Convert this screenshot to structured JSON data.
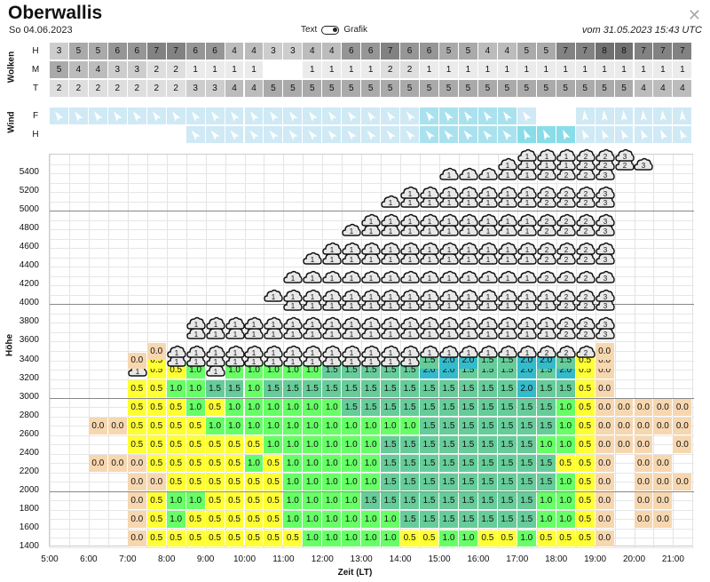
{
  "title": "Oberwallis",
  "date": "So 04.06.2023",
  "toggle": {
    "left_label": "Text",
    "right_label": "Grafik"
  },
  "updated": "vom 31.05.2023 15:43 UTC",
  "close_icon": "close-icon",
  "clouds": {
    "section_label": "Wolken",
    "rows": [
      {
        "label": "H",
        "values": [
          "3",
          "5",
          "5",
          "6",
          "6",
          "7",
          "7",
          "6",
          "6",
          "4",
          "4",
          "3",
          "3",
          "4",
          "4",
          "6",
          "6",
          "7",
          "6",
          "6",
          "5",
          "5",
          "4",
          "4",
          "5",
          "5",
          "7",
          "7",
          "8",
          "8",
          "7",
          "7",
          "7"
        ]
      },
      {
        "label": "M",
        "values": [
          "5",
          "4",
          "4",
          "3",
          "3",
          "2",
          "2",
          "1",
          "1",
          "1",
          "1",
          "",
          "",
          "1",
          "1",
          "1",
          "1",
          "2",
          "2",
          "1",
          "1",
          "1",
          "1",
          "1",
          "1",
          "1",
          "1",
          "1",
          "1",
          "1",
          "1",
          "1",
          "1"
        ]
      },
      {
        "label": "T",
        "values": [
          "2",
          "2",
          "2",
          "2",
          "2",
          "2",
          "2",
          "3",
          "3",
          "4",
          "4",
          "5",
          "5",
          "5",
          "5",
          "5",
          "5",
          "5",
          "5",
          "5",
          "5",
          "5",
          "5",
          "5",
          "5",
          "5",
          "5",
          "5",
          "5",
          "5",
          "4",
          "4",
          "4"
        ]
      }
    ]
  },
  "wind": {
    "section_label": "Wind",
    "rows": [
      {
        "label": "F"
      },
      {
        "label": "H"
      }
    ]
  },
  "chart_data": {
    "type": "heatmap",
    "xlabel": "Zeit (LT)",
    "ylabel": "Höhe",
    "x_ticks": [
      "5:00",
      "6:00",
      "7:00",
      "8:00",
      "9:00",
      "10:00",
      "11:00",
      "12:00",
      "13:00",
      "14:00",
      "15:00",
      "16:00",
      "17:00",
      "18:00",
      "19:00",
      "20:00",
      "21:00"
    ],
    "y_ticks": [
      "1400",
      "1600",
      "1800",
      "2000",
      "2200",
      "2400",
      "2600",
      "2800",
      "3000",
      "3200",
      "3400",
      "3600",
      "3800",
      "4000",
      "4200",
      "4400",
      "4600",
      "4800",
      "5000",
      "5200",
      "5400"
    ],
    "rows": [
      {
        "alt": 1400,
        "values": [
          "",
          "",
          "",
          "",
          "0.0",
          "0.5",
          "0.5",
          "0.5",
          "0.5",
          "0.5",
          "0.5",
          "0.5",
          "0.5",
          "1.0",
          "1.0",
          "1.0",
          "1.0",
          "1.0",
          "0.5",
          "0.5",
          "1.0",
          "1.0",
          "0.5",
          "0.5",
          "1.0",
          "0.5",
          "0.5",
          "0.5",
          "0.0",
          "",
          "",
          "",
          ""
        ]
      },
      {
        "alt": 1600,
        "values": [
          "",
          "",
          "",
          "",
          "0.0",
          "0.5",
          "1.0",
          "0.5",
          "0.5",
          "0.5",
          "0.5",
          "0.5",
          "1.0",
          "1.0",
          "1.0",
          "1.0",
          "1.0",
          "1.0",
          "1.5",
          "1.5",
          "1.5",
          "1.5",
          "1.5",
          "1.5",
          "1.5",
          "1.0",
          "1.0",
          "0.5",
          "0.0",
          "",
          "0.0",
          "0.0",
          ""
        ]
      },
      {
        "alt": 1800,
        "values": [
          "",
          "",
          "",
          "",
          "0.0",
          "0.5",
          "1.0",
          "1.0",
          "0.5",
          "0.5",
          "0.5",
          "0.5",
          "1.0",
          "1.0",
          "1.0",
          "1.0",
          "1.5",
          "1.5",
          "1.5",
          "1.5",
          "1.5",
          "1.5",
          "1.5",
          "1.5",
          "1.5",
          "1.0",
          "1.0",
          "0.5",
          "0.0",
          "",
          "0.0",
          "0.0",
          ""
        ]
      },
      {
        "alt": 2000,
        "values": [
          "",
          "",
          "",
          "",
          "0.0",
          "0.0",
          "0.5",
          "0.5",
          "0.5",
          "0.5",
          "0.5",
          "0.5",
          "1.0",
          "1.0",
          "1.0",
          "1.0",
          "1.0",
          "1.5",
          "1.5",
          "1.5",
          "1.5",
          "1.5",
          "1.5",
          "1.5",
          "1.5",
          "1.5",
          "1.0",
          "0.5",
          "0.0",
          "",
          "0.0",
          "0.0",
          "0.0"
        ]
      },
      {
        "alt": 2200,
        "values": [
          "",
          "",
          "0.0",
          "0.0",
          "0.0",
          "0.5",
          "0.5",
          "0.5",
          "0.5",
          "0.5",
          "1.0",
          "0.5",
          "1.0",
          "1.0",
          "1.0",
          "1.0",
          "1.0",
          "1.5",
          "1.5",
          "1.5",
          "1.5",
          "1.5",
          "1.5",
          "1.5",
          "1.5",
          "1.5",
          "0.5",
          "0.5",
          "0.0",
          "",
          "0.0",
          "0.0",
          ""
        ]
      },
      {
        "alt": 2400,
        "values": [
          "",
          "",
          "",
          "",
          "0.5",
          "0.5",
          "0.5",
          "0.5",
          "0.5",
          "0.5",
          "0.5",
          "1.0",
          "1.0",
          "1.0",
          "1.0",
          "1.0",
          "1.0",
          "1.5",
          "1.5",
          "1.5",
          "1.5",
          "1.5",
          "1.5",
          "1.5",
          "1.5",
          "1.0",
          "1.0",
          "0.5",
          "0.0",
          "0.0",
          "0.0",
          "",
          "0.0"
        ]
      },
      {
        "alt": 2600,
        "values": [
          "",
          "",
          "0.0",
          "0.0",
          "0.5",
          "0.5",
          "0.5",
          "0.5",
          "1.0",
          "1.0",
          "1.0",
          "1.0",
          "1.0",
          "1.0",
          "1.0",
          "1.0",
          "1.0",
          "1.0",
          "1.0",
          "1.5",
          "1.5",
          "1.5",
          "1.5",
          "1.5",
          "1.5",
          "1.5",
          "1.0",
          "0.5",
          "0.0",
          "0.0",
          "0.0",
          "0.0",
          "0.0"
        ]
      },
      {
        "alt": 2800,
        "values": [
          "",
          "",
          "",
          "",
          "0.5",
          "0.5",
          "0.5",
          "1.0",
          "0.5",
          "1.0",
          "1.0",
          "1.0",
          "1.0",
          "1.0",
          "1.0",
          "1.5",
          "1.5",
          "1.5",
          "1.5",
          "1.5",
          "1.5",
          "1.5",
          "1.5",
          "1.5",
          "1.5",
          "1.5",
          "1.0",
          "0.5",
          "0.0",
          "0.0",
          "0.0",
          "0.0",
          "0.0"
        ]
      },
      {
        "alt": 3000,
        "values": [
          "",
          "",
          "",
          "",
          "0.5",
          "0.5",
          "1.0",
          "1.0",
          "1.5",
          "1.5",
          "1.0",
          "1.5",
          "1.5",
          "1.5",
          "1.5",
          "1.5",
          "1.5",
          "1.5",
          "1.5",
          "1.5",
          "1.5",
          "1.5",
          "1.5",
          "1.5",
          "2.0",
          "1.5",
          "1.5",
          "0.5",
          "0.0",
          "",
          "",
          "",
          ""
        ]
      },
      {
        "alt": 3200,
        "values": [
          "",
          "",
          "",
          "",
          "c1",
          "0.5",
          "0.5",
          "1.0",
          "c1",
          "1.0",
          "1.0",
          "1.0",
          "1.0",
          "1.0",
          "1.5",
          "1.5",
          "1.5",
          "1.5",
          "1.5",
          "2.0",
          "2.0",
          "1.5",
          "1.5",
          "1.5",
          "2.0",
          "1.5",
          "2.0",
          "0.5",
          "0.0",
          "",
          "",
          "",
          ""
        ]
      },
      {
        "alt": 3300,
        "values": [
          "",
          "",
          "",
          "",
          "0.0",
          "0.5",
          "c1",
          "c1",
          "c1",
          "c1",
          "c1",
          "c1",
          "c1",
          "c1",
          "c1",
          "c1",
          "c1",
          "c1",
          "c1",
          "1.5",
          "2.0",
          "2.0",
          "1.5",
          "1.5",
          "2.0",
          "2.0",
          "1.5",
          "0.5",
          "0.0",
          "",
          "",
          "",
          ""
        ]
      },
      {
        "alt": 3400,
        "values": [
          "",
          "",
          "",
          "",
          "",
          "0.0",
          "c1",
          "c1",
          "c1",
          "c1",
          "c1",
          "c1",
          "c1",
          "c1",
          "c1",
          "c1",
          "c1",
          "c1",
          "c1",
          "c1",
          "c1",
          "c1",
          "c1",
          "c1",
          "c1",
          "c2",
          "c2",
          "c2",
          "0.0",
          "",
          "",
          "",
          ""
        ]
      },
      {
        "alt": 3600,
        "values": [
          "",
          "",
          "",
          "",
          "",
          "",
          "",
          "c1",
          "c1",
          "c1",
          "c1",
          "c1",
          "c1",
          "c1",
          "c1",
          "c1",
          "c1",
          "c1",
          "c1",
          "c1",
          "c1",
          "c1",
          "c1",
          "c1",
          "c1",
          "c1",
          "c2",
          "c2",
          "c3",
          "",
          "",
          "",
          ""
        ]
      },
      {
        "alt": 3700,
        "values": [
          "",
          "",
          "",
          "",
          "",
          "",
          "",
          "c1",
          "c1",
          "c1",
          "c1",
          "c1",
          "c1",
          "c1",
          "c1",
          "c1",
          "c1",
          "c1",
          "c1",
          "c1",
          "c1",
          "c1",
          "c1",
          "c1",
          "c1",
          "c1",
          "c2",
          "c2",
          "c3",
          "",
          "",
          "",
          ""
        ]
      },
      {
        "alt": 3900,
        "values": [
          "",
          "",
          "",
          "",
          "",
          "",
          "",
          "",
          "",
          "",
          "",
          "",
          "c1",
          "c1",
          "c1",
          "c1",
          "c1",
          "c1",
          "c1",
          "c1",
          "c1",
          "c1",
          "c1",
          "c1",
          "c1",
          "c1",
          "c2",
          "c2",
          "c3",
          "",
          "",
          "",
          ""
        ]
      },
      {
        "alt": 4000,
        "values": [
          "",
          "",
          "",
          "",
          "",
          "",
          "",
          "",
          "",
          "",
          "",
          "c1",
          "c1",
          "c1",
          "c1",
          "c1",
          "c1",
          "c1",
          "c1",
          "c1",
          "c1",
          "c1",
          "c1",
          "c1",
          "c1",
          "c1",
          "c2",
          "c2",
          "c3",
          "",
          "",
          "",
          ""
        ]
      },
      {
        "alt": 4200,
        "values": [
          "",
          "",
          "",
          "",
          "",
          "",
          "",
          "",
          "",
          "",
          "",
          "",
          "c1",
          "c1",
          "c1",
          "c1",
          "c1",
          "c1",
          "c1",
          "c1",
          "c1",
          "c1",
          "c1",
          "c1",
          "c1",
          "c2",
          "c2",
          "c2",
          "c3",
          "",
          "",
          "",
          ""
        ]
      },
      {
        "alt": 4400,
        "values": [
          "",
          "",
          "",
          "",
          "",
          "",
          "",
          "",
          "",
          "",
          "",
          "",
          "",
          "c1",
          "c1",
          "c1",
          "c1",
          "c1",
          "c1",
          "c1",
          "c1",
          "c1",
          "c1",
          "c1",
          "c1",
          "c2",
          "c2",
          "c2",
          "c3",
          "",
          "",
          "",
          ""
        ]
      },
      {
        "alt": 4500,
        "values": [
          "",
          "",
          "",
          "",
          "",
          "",
          "",
          "",
          "",
          "",
          "",
          "",
          "",
          "",
          "c1",
          "c1",
          "c1",
          "c1",
          "c1",
          "c1",
          "c1",
          "c1",
          "c1",
          "c1",
          "c1",
          "c2",
          "c2",
          "c2",
          "c3",
          "",
          "",
          "",
          ""
        ]
      },
      {
        "alt": 4700,
        "values": [
          "",
          "",
          "",
          "",
          "",
          "",
          "",
          "",
          "",
          "",
          "",
          "",
          "",
          "",
          "",
          "c1",
          "c1",
          "c1",
          "c1",
          "c1",
          "c1",
          "c1",
          "c1",
          "c1",
          "c1",
          "c2",
          "c2",
          "c2",
          "c3",
          "",
          "",
          "",
          ""
        ]
      },
      {
        "alt": 4800,
        "values": [
          "",
          "",
          "",
          "",
          "",
          "",
          "",
          "",
          "",
          "",
          "",
          "",
          "",
          "",
          "",
          "",
          "c1",
          "c1",
          "c1",
          "c1",
          "c1",
          "c1",
          "c1",
          "c1",
          "c1",
          "c2",
          "c2",
          "c2",
          "c3",
          "",
          "",
          "",
          ""
        ]
      },
      {
        "alt": 5000,
        "values": [
          "",
          "",
          "",
          "",
          "",
          "",
          "",
          "",
          "",
          "",
          "",
          "",
          "",
          "",
          "",
          "",
          "",
          "c1",
          "c1",
          "c1",
          "c1",
          "c1",
          "c1",
          "c1",
          "c1",
          "c2",
          "c2",
          "c2",
          "c3",
          "",
          "",
          "",
          ""
        ]
      },
      {
        "alt": 5100,
        "values": [
          "",
          "",
          "",
          "",
          "",
          "",
          "",
          "",
          "",
          "",
          "",
          "",
          "",
          "",
          "",
          "",
          "",
          "",
          "c1",
          "c1",
          "c1",
          "c1",
          "c1",
          "c1",
          "c1",
          "c2",
          "c2",
          "c2",
          "c3",
          "",
          "",
          "",
          ""
        ]
      },
      {
        "alt": 5300,
        "values": [
          "",
          "",
          "",
          "",
          "",
          "",
          "",
          "",
          "",
          "",
          "",
          "",
          "",
          "",
          "",
          "",
          "",
          "",
          "",
          "",
          "c1",
          "c1",
          "c1",
          "c1",
          "c1",
          "c2",
          "c2",
          "c2",
          "c3",
          "",
          "",
          "",
          ""
        ]
      },
      {
        "alt": 5400,
        "values": [
          "",
          "",
          "",
          "",
          "",
          "",
          "",
          "",
          "",
          "",
          "",
          "",
          "",
          "",
          "",
          "",
          "",
          "",
          "",
          "",
          "",
          "",
          "",
          "c1",
          "c1",
          "c1",
          "c1",
          "c2",
          "c2",
          "c2",
          "c3",
          "",
          ""
        ]
      },
      {
        "alt": 5500,
        "values": [
          "",
          "",
          "",
          "",
          "",
          "",
          "",
          "",
          "",
          "",
          "",
          "",
          "",
          "",
          "",
          "",
          "",
          "",
          "",
          "",
          "",
          "",
          "",
          "",
          "c1",
          "c1",
          "c1",
          "c2",
          "c2",
          "c3",
          "",
          "",
          ""
        ]
      }
    ]
  },
  "colors": {
    "c0.0": "#f7d7b0",
    "c0.5": "#ffff33",
    "c1.0": "#66ff66",
    "c1.5": "#66cc99",
    "c2.0": "#33bbcc"
  }
}
